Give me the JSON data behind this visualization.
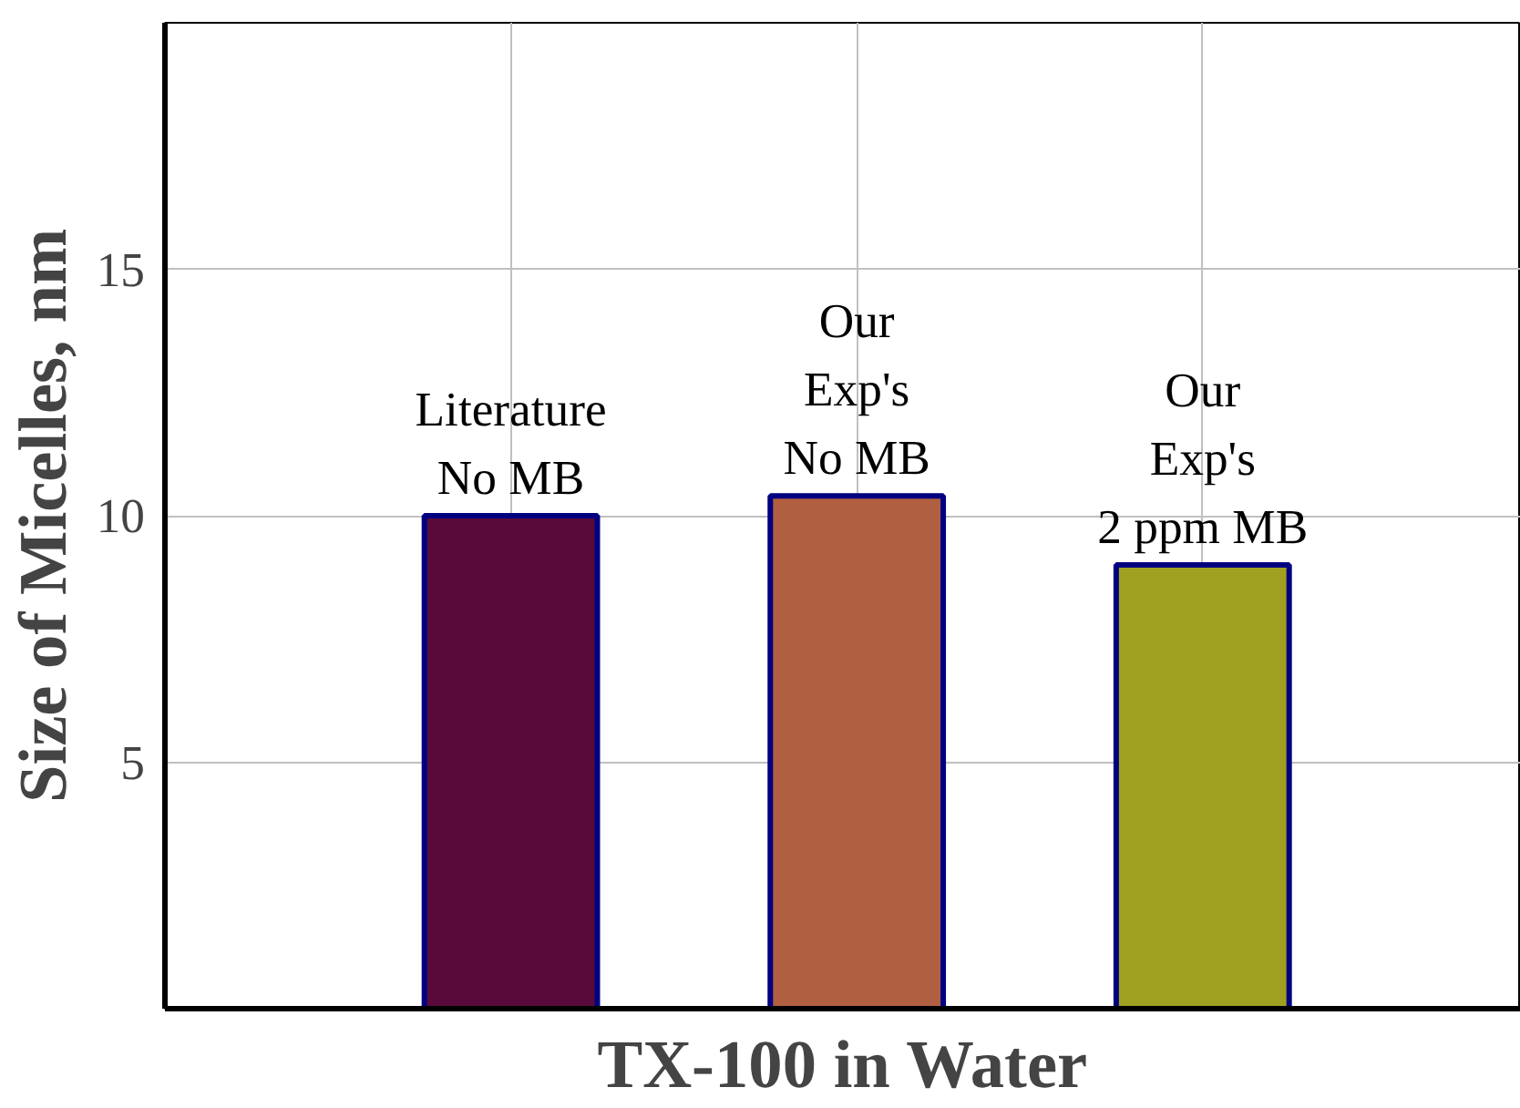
{
  "chart_data": {
    "type": "bar",
    "xlabel": "TX-100 in Water",
    "ylabel": "Size of Micelles, nm",
    "categories": [
      "Literature\nNo MB",
      "Our\nExp's\nNo MB",
      "Our\nExp's\n2 ppm MB"
    ],
    "values": [
      10.0,
      10.4,
      9.0
    ],
    "colors": [
      "#5a0a3a",
      "#b06040",
      "#a0a020"
    ],
    "ylim": [
      0,
      20
    ],
    "yticks": [
      5,
      10,
      15
    ],
    "grid": true,
    "tick_labels": "y"
  }
}
